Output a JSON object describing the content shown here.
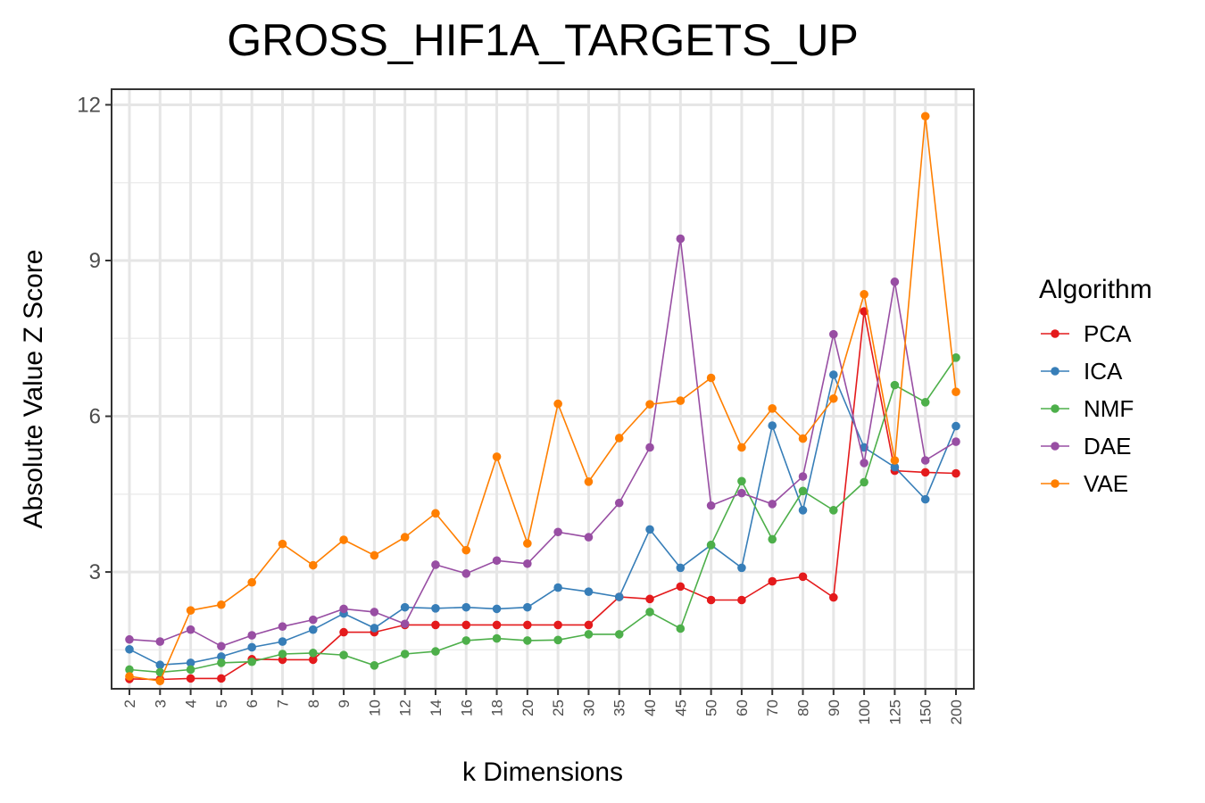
{
  "chart_data": {
    "type": "line",
    "title": "GROSS_HIF1A_TARGETS_UP",
    "xlabel": "k Dimensions",
    "ylabel": "Absolute Value Z Score",
    "categories": [
      "2",
      "3",
      "4",
      "5",
      "6",
      "7",
      "8",
      "9",
      "10",
      "12",
      "14",
      "16",
      "18",
      "20",
      "25",
      "30",
      "35",
      "40",
      "45",
      "50",
      "60",
      "70",
      "80",
      "90",
      "100",
      "125",
      "150",
      "200"
    ],
    "yticks": [
      3,
      6,
      9,
      12
    ],
    "yticklabels": [
      "3",
      "6",
      "9",
      "12"
    ],
    "ylim": [
      0.75,
      12.3
    ],
    "grid": true,
    "legend": {
      "title": "Algorithm",
      "position": "right"
    },
    "series": [
      {
        "name": "PCA",
        "color": "#E41A1C",
        "values": [
          0.94,
          0.93,
          0.95,
          0.95,
          1.32,
          1.31,
          1.31,
          1.84,
          1.84,
          1.98,
          1.98,
          1.98,
          1.98,
          1.98,
          1.98,
          1.98,
          2.52,
          2.48,
          2.72,
          2.46,
          2.46,
          2.82,
          2.91,
          2.51,
          8.02,
          4.95,
          4.92,
          4.9
        ]
      },
      {
        "name": "ICA",
        "color": "#377EB8",
        "values": [
          1.51,
          1.21,
          1.25,
          1.37,
          1.55,
          1.66,
          1.89,
          2.2,
          1.92,
          2.32,
          2.3,
          2.32,
          2.29,
          2.32,
          2.7,
          2.62,
          2.52,
          3.82,
          3.08,
          3.52,
          3.08,
          5.82,
          4.19,
          6.8,
          5.4,
          5.02,
          4.4,
          5.81
        ]
      },
      {
        "name": "NMF",
        "color": "#4DAF4A",
        "values": [
          1.12,
          1.07,
          1.12,
          1.25,
          1.27,
          1.42,
          1.44,
          1.4,
          1.2,
          1.42,
          1.47,
          1.68,
          1.72,
          1.68,
          1.69,
          1.8,
          1.8,
          2.23,
          1.91,
          3.52,
          4.75,
          3.63,
          4.56,
          4.19,
          4.73,
          6.6,
          6.27,
          7.13
        ]
      },
      {
        "name": "DAE",
        "color": "#984EA3",
        "values": [
          1.7,
          1.66,
          1.89,
          1.57,
          1.78,
          1.95,
          2.08,
          2.29,
          2.23,
          2.0,
          3.14,
          2.97,
          3.22,
          3.16,
          3.77,
          3.67,
          4.33,
          5.4,
          9.42,
          4.28,
          4.52,
          4.31,
          4.84,
          7.58,
          5.1,
          8.59,
          5.15,
          5.51
        ]
      },
      {
        "name": "VAE",
        "color": "#FF7F00",
        "values": [
          0.99,
          0.9,
          2.26,
          2.37,
          2.8,
          3.54,
          3.13,
          3.62,
          3.32,
          3.67,
          4.13,
          3.42,
          5.22,
          3.55,
          6.24,
          4.74,
          5.58,
          6.23,
          6.3,
          6.74,
          5.4,
          6.15,
          5.57,
          6.34,
          8.35,
          5.15,
          11.78,
          6.47
        ]
      }
    ]
  }
}
